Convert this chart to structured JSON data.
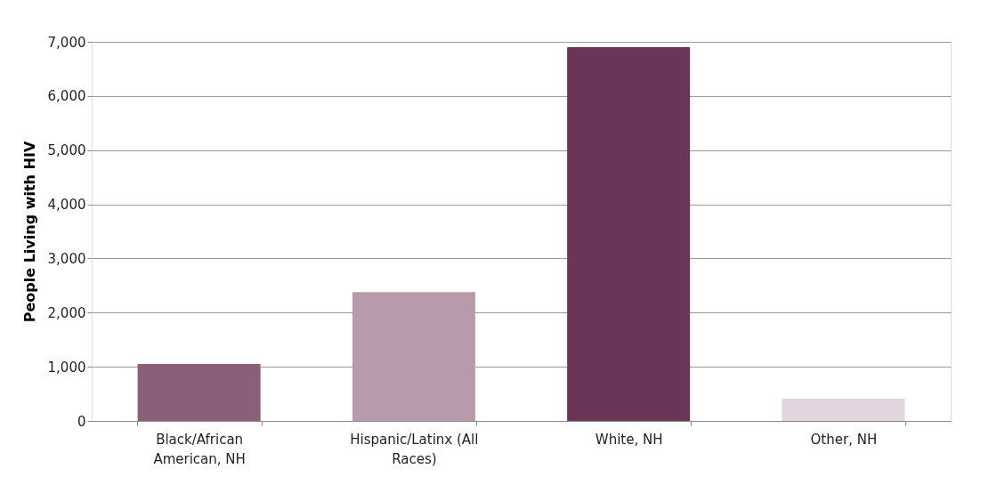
{
  "chart_data": {
    "type": "bar",
    "ylabel": "People Living with HIV",
    "categories": [
      "Black/African American, NH",
      "Hispanic/Latinx (All Races)",
      "White, NH",
      "Other, NH"
    ],
    "values": [
      1050,
      2380,
      6900,
      410
    ],
    "colors": [
      "#8b5e7a",
      "#b89aad",
      "#6b3557",
      "#e2d5dd"
    ],
    "ylim": [
      0,
      7000
    ],
    "yticks": [
      0,
      {
        "value": 1000,
        "label": "1,000"
      },
      {
        "value": 2000,
        "label": "2,000"
      },
      {
        "value": 3000,
        "label": "3,000"
      },
      {
        "value": 4000,
        "label": "4,000"
      },
      {
        "value": 5000,
        "label": "5,000"
      },
      {
        "value": 6000,
        "label": "6,000"
      },
      {
        "value": 7000,
        "label": "7,000"
      }
    ],
    "grid": "y"
  }
}
